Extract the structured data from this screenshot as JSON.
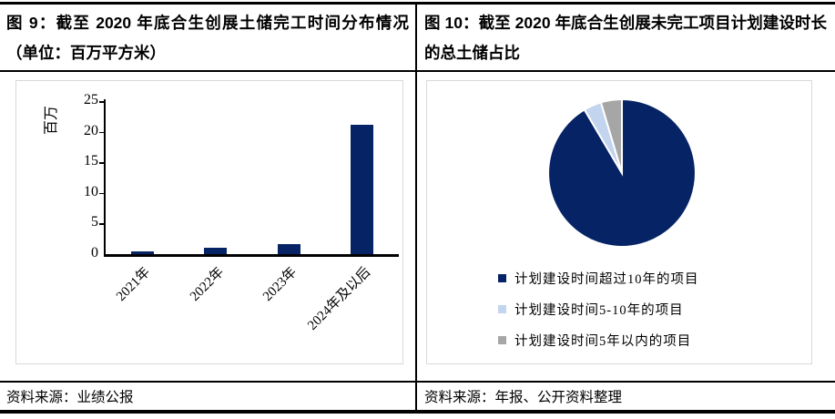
{
  "left_panel": {
    "title": "图 9：截至 2020 年底合生创展土储完工时间分布情况（单位：百万平方米）",
    "source": "资料来源：业绩公报"
  },
  "right_panel": {
    "title": "图 10：截至 2020 年底合生创展未完工项目计划建设时长的总土储占比",
    "source": "资料来源：年报、公开资料整理"
  },
  "chart_data": [
    {
      "type": "bar",
      "title": "截至2020年底合生创展土储完工时间分布情况",
      "unit": "百万平方米",
      "categories": [
        "2021年",
        "2022年",
        "2023年",
        "2024年及以后"
      ],
      "values": [
        0.4,
        1.0,
        1.7,
        21.2
      ],
      "ylabel": "百万",
      "ylim": [
        0,
        25
      ],
      "yticks": [
        0,
        5,
        10,
        15,
        20,
        25
      ],
      "bar_color": "#062465",
      "grid": false,
      "legend_position": "none"
    },
    {
      "type": "pie",
      "title": "截至2020年底合生创展未完工项目计划建设时长的总土储占比",
      "start_angle_deg": 0,
      "direction": "clockwise",
      "legend_position": "bottom",
      "slices": [
        {
          "label": "计划建设时间超过10年的项目",
          "value_pct_est": 91.5,
          "color": "#062465"
        },
        {
          "label": "计划建设时间5-10年的项目",
          "value_pct_est": 3.9,
          "color": "#c3d4ee"
        },
        {
          "label": "计划建设时间5年以内的项目",
          "value_pct_est": 4.6,
          "color": "#a6a6a6"
        }
      ]
    }
  ]
}
